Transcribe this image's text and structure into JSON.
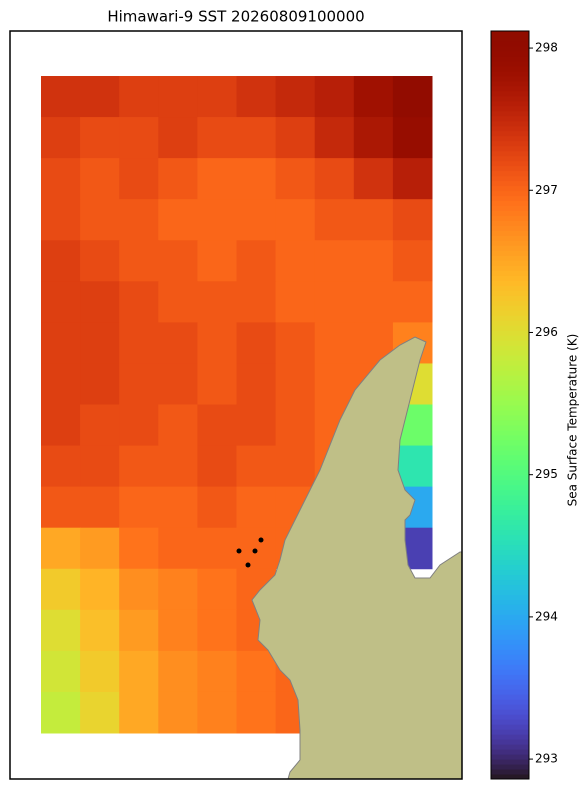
{
  "chart_data": {
    "type": "heatmap",
    "title": "Himawari-9 SST 20260809100000",
    "colorbar_label": "Sea Surface Temperature (K)",
    "colormap": "turbo",
    "clim": [
      292.86,
      298.12
    ],
    "cticks": [
      293,
      294,
      295,
      296,
      297,
      298
    ],
    "values": [
      [
        297.4,
        297.4,
        297.3,
        297.3,
        297.3,
        297.4,
        297.5,
        297.6,
        297.8,
        298.0
      ],
      [
        297.3,
        297.2,
        297.2,
        297.3,
        297.2,
        297.2,
        297.3,
        297.5,
        297.7,
        297.9
      ],
      [
        297.2,
        297.1,
        297.2,
        297.1,
        297.0,
        297.0,
        297.1,
        297.2,
        297.4,
        297.6
      ],
      [
        297.2,
        297.1,
        297.1,
        297.0,
        297.0,
        297.0,
        297.0,
        297.1,
        297.1,
        297.2
      ],
      [
        297.3,
        297.2,
        297.1,
        297.1,
        297.0,
        297.1,
        297.0,
        297.0,
        297.0,
        297.1
      ],
      [
        297.3,
        297.3,
        297.2,
        297.1,
        297.1,
        297.1,
        297.0,
        297.0,
        297.0,
        297.0
      ],
      [
        297.3,
        297.3,
        297.2,
        297.2,
        297.1,
        297.2,
        297.1,
        297.0,
        297.0,
        296.8
      ],
      [
        297.3,
        297.3,
        297.2,
        297.2,
        297.1,
        297.2,
        297.1,
        297.0,
        297.0,
        296.0
      ],
      [
        297.3,
        297.2,
        297.2,
        297.1,
        297.2,
        297.2,
        297.1,
        297.0,
        null,
        295.2
      ],
      [
        297.2,
        297.2,
        297.1,
        297.1,
        297.2,
        297.1,
        297.1,
        297.0,
        null,
        294.6
      ],
      [
        297.1,
        297.1,
        297.0,
        297.0,
        297.1,
        297.0,
        297.0,
        null,
        null,
        294.0
      ],
      [
        296.5,
        296.6,
        296.9,
        297.0,
        297.0,
        297.0,
        297.0,
        null,
        null,
        293.2
      ],
      [
        296.2,
        296.4,
        296.7,
        296.8,
        296.9,
        297.0,
        null,
        null,
        null,
        null
      ],
      [
        296.0,
        296.3,
        296.6,
        296.8,
        296.9,
        297.0,
        null,
        null,
        null,
        null
      ],
      [
        295.9,
        296.2,
        296.5,
        296.7,
        296.8,
        296.9,
        297.0,
        null,
        null,
        null
      ],
      [
        295.8,
        296.1,
        296.5,
        296.7,
        296.8,
        296.9,
        297.0,
        null,
        null,
        null
      ]
    ]
  }
}
